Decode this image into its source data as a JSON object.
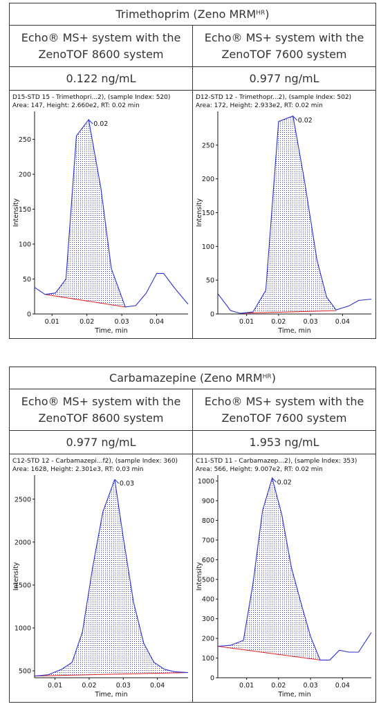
{
  "panels": [
    {
      "title_main": "Trimethoprim (Zeno MRM",
      "title_sup": "HR",
      "title_end": ")",
      "columns": [
        {
          "system_line1": "Echo® MS+ system with the",
          "system_line2": "ZenoTOF 8600 system",
          "concentration": "0.122 ng/mL"
        },
        {
          "system_line1": "Echo® MS+ system with the",
          "system_line2": "ZenoTOF 7600 system",
          "concentration": "0.977 ng/mL"
        }
      ]
    },
    {
      "title_main": "Carbamazepine (Zeno MRM",
      "title_sup": "HR",
      "title_end": ")",
      "columns": [
        {
          "system_line1": "Echo® MS+ system with the",
          "system_line2": "ZenoTOF 8600 system",
          "concentration": "0.977 ng/mL"
        },
        {
          "system_line1": "Echo® MS+ system with the",
          "system_line2": "ZenoTOF 7600 system",
          "concentration": "1.953 ng/mL"
        }
      ]
    }
  ],
  "chart_data": [
    {
      "type": "line",
      "header_line1": "D15-STD 15 - Trimethopri...2), (sample Index: 520)",
      "header_line2": "Area: 147, Height: 2.660e2, RT: 0.02 min",
      "xlabel": "Time, min",
      "ylabel": "Intensity",
      "xlim": [
        0.005,
        0.049
      ],
      "ylim": [
        0,
        290
      ],
      "x_ticks": [
        "0.01",
        "0.02",
        "0.03",
        "0.04"
      ],
      "x_tick_values": [
        0.01,
        0.02,
        0.03,
        0.04
      ],
      "y_ticks": [
        "0",
        "50",
        "100",
        "150",
        "200",
        "250"
      ],
      "y_tick_values": [
        0,
        50,
        100,
        150,
        200,
        250
      ],
      "apex_label": "0.02",
      "apex": [
        0.0205,
        278
      ],
      "series_color": "#2a2fd0",
      "baseline_color": "#e02020",
      "x": [
        0.005,
        0.008,
        0.011,
        0.014,
        0.017,
        0.0205,
        0.024,
        0.027,
        0.031,
        0.034,
        0.037,
        0.04,
        0.042,
        0.045,
        0.049
      ],
      "y": [
        38,
        28,
        30,
        50,
        255,
        278,
        180,
        65,
        10,
        12,
        30,
        58,
        58,
        38,
        14
      ],
      "peak_x": [
        0.008,
        0.011,
        0.014,
        0.017,
        0.0205,
        0.024,
        0.027,
        0.031
      ],
      "peak_y": [
        28,
        30,
        50,
        255,
        278,
        180,
        65,
        10
      ],
      "baseline": [
        [
          0.008,
          28
        ],
        [
          0.031,
          10
        ]
      ]
    },
    {
      "type": "line",
      "header_line1": "D12-STD 12 - Trimethopr...2), (sample Index: 502)",
      "header_line2": "Area: 172, Height: 2.933e2, RT: 0.02 min",
      "xlabel": "Time, min",
      "ylabel": "Intensity",
      "xlim": [
        0.001,
        0.049
      ],
      "ylim": [
        0,
        300
      ],
      "x_ticks": [
        "0.01",
        "0.02",
        "0.03",
        "0.04"
      ],
      "x_tick_values": [
        0.01,
        0.02,
        0.03,
        0.04
      ],
      "y_ticks": [
        "0",
        "50",
        "100",
        "150",
        "200",
        "250"
      ],
      "y_tick_values": [
        0,
        50,
        100,
        150,
        200,
        250
      ],
      "apex_label": "0.02",
      "apex": [
        0.0245,
        293
      ],
      "series_color": "#2a2fd0",
      "baseline_color": "#e02020",
      "x": [
        0.001,
        0.005,
        0.008,
        0.012,
        0.016,
        0.02,
        0.0245,
        0.028,
        0.032,
        0.035,
        0.038,
        0.042,
        0.045,
        0.049
      ],
      "y": [
        30,
        5,
        1,
        3,
        35,
        285,
        293,
        200,
        80,
        25,
        6,
        12,
        20,
        22
      ],
      "peak_x": [
        0.008,
        0.012,
        0.016,
        0.02,
        0.0245,
        0.028,
        0.032,
        0.035,
        0.038
      ],
      "peak_y": [
        1,
        3,
        35,
        285,
        293,
        200,
        80,
        25,
        6
      ],
      "baseline": [
        [
          0.008,
          1
        ],
        [
          0.038,
          5
        ]
      ]
    },
    {
      "type": "line",
      "header_line1": "C12-STD 12 - Carbamazepi...f2), (sample Index: 360)",
      "header_line2": "Area: 1628, Height: 2.301e3, RT: 0.03 min",
      "xlabel": "Time, min",
      "ylabel": "Intensity",
      "xlim": [
        0.004,
        0.049
      ],
      "ylim": [
        420,
        2780
      ],
      "x_ticks": [
        "0.01",
        "0.02",
        "0.03",
        "0.04"
      ],
      "x_tick_values": [
        0.01,
        0.02,
        0.03,
        0.04
      ],
      "y_ticks": [
        "500",
        "1000",
        "1500",
        "2000",
        "2500"
      ],
      "y_tick_values": [
        500,
        1000,
        1500,
        2000,
        2500
      ],
      "apex_label": "0.03",
      "apex": [
        0.0275,
        2730
      ],
      "series_color": "#2a2fd0",
      "baseline_color": "#e02020",
      "x": [
        0.004,
        0.008,
        0.012,
        0.015,
        0.018,
        0.021,
        0.024,
        0.0275,
        0.03,
        0.033,
        0.036,
        0.039,
        0.042,
        0.045,
        0.049
      ],
      "y": [
        440,
        455,
        520,
        600,
        950,
        1700,
        2350,
        2730,
        2050,
        1300,
        820,
        600,
        520,
        490,
        480
      ],
      "peak_x": [
        0.004,
        0.008,
        0.012,
        0.015,
        0.018,
        0.021,
        0.024,
        0.0275,
        0.03,
        0.033,
        0.036,
        0.039,
        0.042,
        0.045,
        0.049
      ],
      "peak_y": [
        440,
        455,
        520,
        600,
        950,
        1700,
        2350,
        2730,
        2050,
        1300,
        820,
        600,
        520,
        490,
        480
      ],
      "baseline": [
        [
          0.004,
          440
        ],
        [
          0.049,
          480
        ]
      ]
    },
    {
      "type": "line",
      "header_line1": "C11-STD 11 - Carbamazep...2), (sample Index: 353)",
      "header_line2": "Area: 566, Height: 9.007e2, RT: 0.02 min",
      "xlabel": "Time, min",
      "ylabel": "Intensity",
      "xlim": [
        0.001,
        0.049
      ],
      "ylim": [
        0,
        1030
      ],
      "x_ticks": [
        "0.01",
        "0.02",
        "0.03",
        "0.04"
      ],
      "x_tick_values": [
        0.01,
        0.02,
        0.03,
        0.04
      ],
      "y_ticks": [
        "0",
        "100",
        "200",
        "300",
        "400",
        "500",
        "600",
        "700",
        "800",
        "900",
        "1000"
      ],
      "y_tick_values": [
        0,
        100,
        200,
        300,
        400,
        500,
        600,
        700,
        800,
        900,
        1000
      ],
      "apex_label": "0.02",
      "apex": [
        0.018,
        1015
      ],
      "series_color": "#2a2fd0",
      "baseline_color": "#e02020",
      "x": [
        0.001,
        0.005,
        0.009,
        0.012,
        0.015,
        0.018,
        0.021,
        0.024,
        0.027,
        0.03,
        0.033,
        0.036,
        0.039,
        0.042,
        0.045,
        0.049
      ],
      "y": [
        160,
        165,
        190,
        480,
        850,
        1015,
        830,
        560,
        380,
        210,
        90,
        90,
        140,
        130,
        130,
        230
      ],
      "peak_x": [
        0.001,
        0.005,
        0.009,
        0.012,
        0.015,
        0.018,
        0.021,
        0.024,
        0.027,
        0.03,
        0.033
      ],
      "peak_y": [
        160,
        165,
        190,
        480,
        850,
        1015,
        830,
        560,
        380,
        210,
        90
      ],
      "baseline": [
        [
          0.001,
          160
        ],
        [
          0.033,
          90
        ]
      ]
    }
  ]
}
